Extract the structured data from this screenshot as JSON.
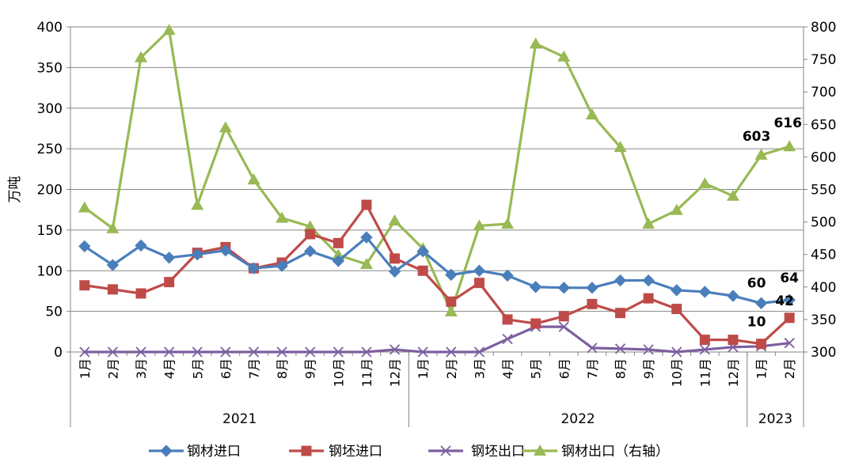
{
  "chart_data": {
    "type": "line",
    "title": "",
    "ylabel": "万吨",
    "ylim": [
      0,
      400
    ],
    "y_ticks": [
      "0",
      "50",
      "100",
      "150",
      "200",
      "250",
      "300",
      "350",
      "400"
    ],
    "y2lim": [
      300,
      800
    ],
    "y2_ticks": [
      "300",
      "350",
      "400",
      "450",
      "500",
      "550",
      "600",
      "650",
      "700",
      "750",
      "800"
    ],
    "grid": true,
    "legend": "bottom",
    "categories": [
      "1月",
      "2月",
      "3月",
      "4月",
      "5月",
      "6月",
      "7月",
      "8月",
      "9月",
      "10月",
      "11月",
      "12月",
      "1月",
      "2月",
      "3月",
      "4月",
      "5月",
      "6月",
      "7月",
      "8月",
      "9月",
      "10月",
      "11月",
      "12月",
      "1月",
      "2月"
    ],
    "years": [
      {
        "label": "2021",
        "span": 12
      },
      {
        "label": "2022",
        "span": 12
      },
      {
        "label": "2023",
        "span": 2
      }
    ],
    "series": [
      {
        "name": "钢材进口",
        "axis": "left",
        "color": "#4a7ebb",
        "marker": "diamond",
        "values": [
          130,
          107,
          131,
          116,
          120,
          125,
          103,
          106,
          124,
          112,
          141,
          99,
          124,
          95,
          100,
          94,
          80,
          79,
          79,
          88,
          88,
          76,
          74,
          69,
          60,
          64
        ]
      },
      {
        "name": "钢坯进口",
        "axis": "left",
        "color": "#be4b48",
        "marker": "square",
        "values": [
          82,
          77,
          72,
          86,
          122,
          129,
          103,
          110,
          145,
          134,
          181,
          115,
          100,
          62,
          85,
          40,
          35,
          44,
          59,
          48,
          66,
          53,
          15,
          15,
          10,
          42
        ]
      },
      {
        "name": "钢坯出口",
        "axis": "left",
        "color": "#7d5fa0",
        "marker": "x",
        "values": [
          0,
          0,
          0,
          0,
          0,
          0,
          0,
          0,
          0,
          0,
          0,
          3,
          0,
          0,
          0,
          16,
          31,
          31,
          5,
          4,
          3,
          0,
          3,
          6,
          7,
          11
        ]
      },
      {
        "name": "钢材出口（右轴）",
        "axis": "right",
        "color": "#98b954",
        "marker": "triangle",
        "values": [
          522,
          490,
          753,
          795,
          526,
          645,
          565,
          506,
          493,
          449,
          435,
          502,
          459,
          362,
          494,
          497,
          774,
          754,
          665,
          615,
          497,
          518,
          559,
          540,
          603,
          616
        ]
      }
    ],
    "annotations": [
      {
        "series": "钢材出口（右轴）",
        "index": 24,
        "text": "603"
      },
      {
        "series": "钢材出口（右轴）",
        "index": 25,
        "text": "616"
      },
      {
        "series": "钢材进口",
        "index": 24,
        "text": "60"
      },
      {
        "series": "钢材进口",
        "index": 25,
        "text": "64"
      },
      {
        "series": "钢坯进口",
        "index": 24,
        "text": "10"
      },
      {
        "series": "钢坯进口",
        "index": 25,
        "text": "42"
      }
    ]
  }
}
